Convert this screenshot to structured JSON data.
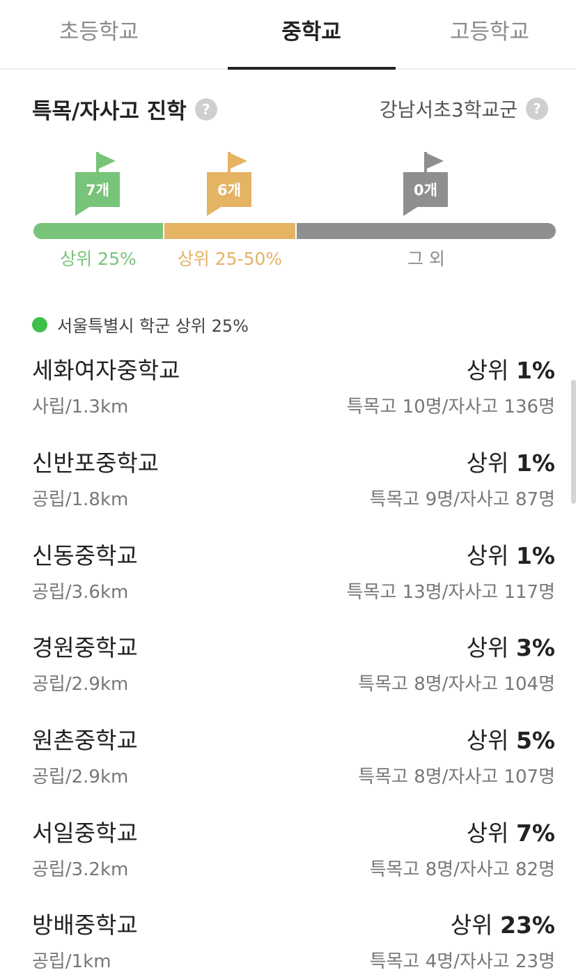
{
  "tabs": [
    {
      "label": "초등학교",
      "active": false
    },
    {
      "label": "중학교",
      "active": true
    },
    {
      "label": "고등학교",
      "active": false
    }
  ],
  "section": {
    "title": "특목/자사고 진학",
    "region": "강남서초3학교군",
    "help_icon": "?"
  },
  "range_bar": {
    "segments": [
      {
        "label": "상위 25%",
        "count": "7개",
        "color": "#78c47a"
      },
      {
        "label": "상위 25-50%",
        "count": "6개",
        "color": "#e4b364"
      },
      {
        "label": "그 외",
        "count": "0개",
        "color": "#8f8f8f"
      }
    ]
  },
  "legend": {
    "label": "서울특별시 학군 상위 25%",
    "color": "#3fbf4b"
  },
  "schools": [
    {
      "name": "세화여자중학교",
      "rank_prefix": "상위",
      "rank_value": "1%",
      "meta": "사립/1.3km",
      "stats": "특목고 10명/자사고 136명"
    },
    {
      "name": "신반포중학교",
      "rank_prefix": "상위",
      "rank_value": "1%",
      "meta": "공립/1.8km",
      "stats": "특목고 9명/자사고 87명"
    },
    {
      "name": "신동중학교",
      "rank_prefix": "상위",
      "rank_value": "1%",
      "meta": "공립/3.6km",
      "stats": "특목고 13명/자사고 117명"
    },
    {
      "name": "경원중학교",
      "rank_prefix": "상위",
      "rank_value": "3%",
      "meta": "공립/2.9km",
      "stats": "특목고 8명/자사고 104명"
    },
    {
      "name": "원촌중학교",
      "rank_prefix": "상위",
      "rank_value": "5%",
      "meta": "공립/2.9km",
      "stats": "특목고 8명/자사고 107명"
    },
    {
      "name": "서일중학교",
      "rank_prefix": "상위",
      "rank_value": "7%",
      "meta": "공립/3.2km",
      "stats": "특목고 8명/자사고 82명"
    },
    {
      "name": "방배중학교",
      "rank_prefix": "상위",
      "rank_value": "23%",
      "meta": "공립/1km",
      "stats": "특목고 4명/자사고 23명"
    }
  ]
}
